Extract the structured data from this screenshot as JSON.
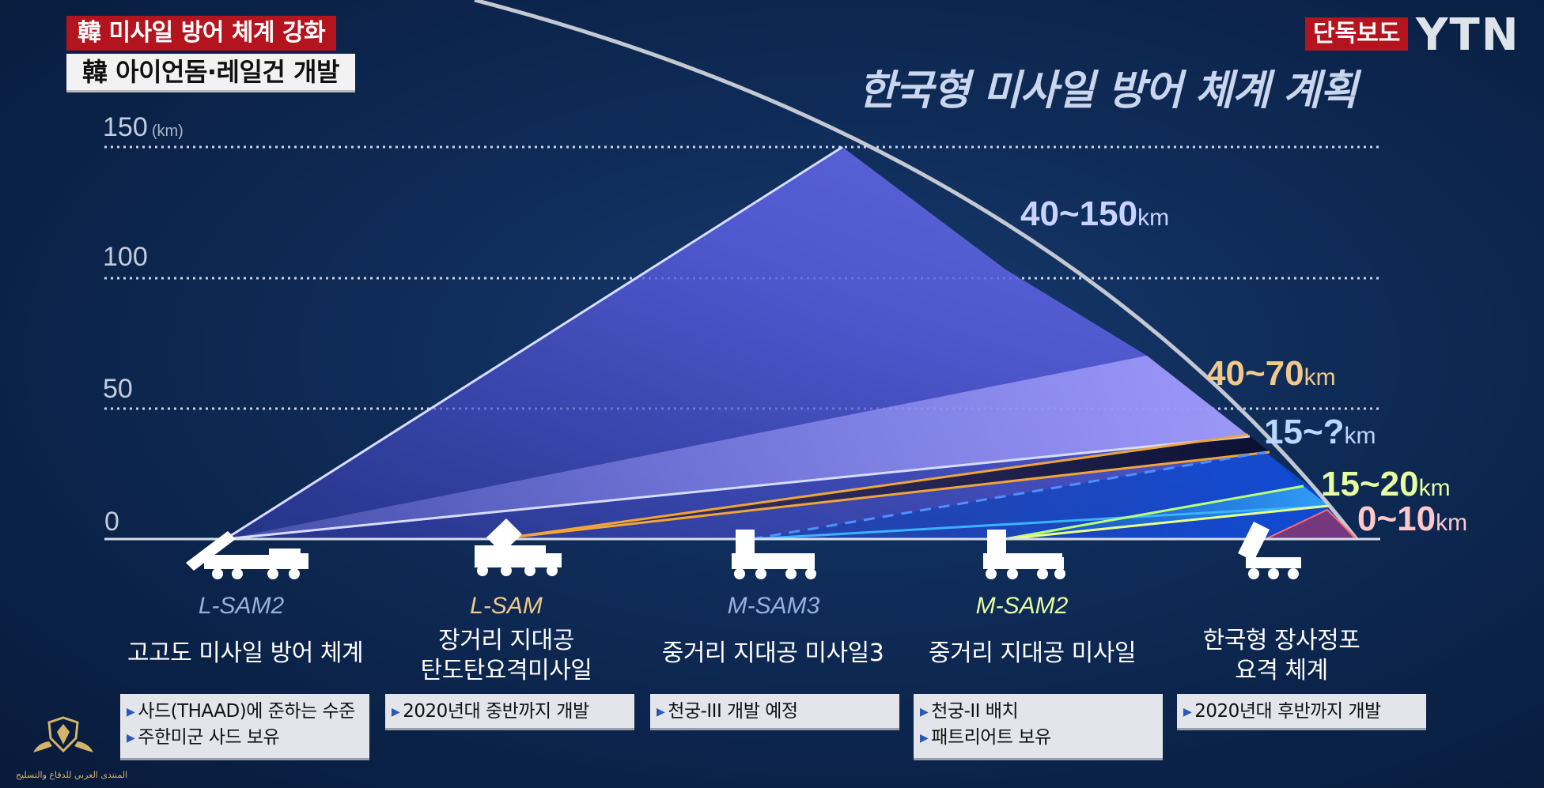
{
  "captions": {
    "top": "韓 미사일 방어 체계 강화",
    "bottom": "韓 아이언돔·레일건 개발",
    "exclusive": "단독보도",
    "logo": "YTN"
  },
  "title": "한국형 미사일 방어 체계 계획",
  "axis": {
    "unit": "(km)",
    "ticks": [
      "150",
      "100",
      "50",
      "0"
    ]
  },
  "ranges": [
    {
      "value": "40~150",
      "unit": "km",
      "color": "#c9d3ff"
    },
    {
      "value": "40~70",
      "unit": "km",
      "color": "#f2c98a"
    },
    {
      "value": "15~?",
      "unit": "km",
      "color": "#b8d8ff"
    },
    {
      "value": "15~20",
      "unit": "km",
      "color": "#e7ff9e"
    },
    {
      "value": "0~10",
      "unit": "km",
      "color": "#ffc8c8"
    }
  ],
  "systems": [
    {
      "code": "L-SAM2",
      "code_color": "#9ab0dc",
      "name": [
        "고고도 미사일 방어 체계"
      ],
      "notes": [
        "사드(THAAD)에 준하는 수준",
        "주한미군 사드 보유"
      ]
    },
    {
      "code": "L-SAM",
      "code_color": "#f2c98a",
      "name": [
        "장거리 지대공",
        "탄도탄요격미사일"
      ],
      "notes": [
        "2020년대 중반까지 개발"
      ]
    },
    {
      "code": "M-SAM3",
      "code_color": "#9ab0dc",
      "name": [
        "중거리 지대공 미사일3"
      ],
      "notes": [
        "천궁-III 개발 예정"
      ]
    },
    {
      "code": "M-SAM2",
      "code_color": "#e7ff9e",
      "name": [
        "중거리 지대공 미사일"
      ],
      "notes": [
        "천궁-II 배치",
        "패트리어트 보유"
      ]
    },
    {
      "code": "",
      "code_color": "#ffffff",
      "name": [
        "한국형 장사정포",
        "요격 체계"
      ],
      "notes": [
        "2020년대 후반까지 개발"
      ]
    }
  ],
  "watermark": "المنتدى العربي للدفاع والتسليح"
}
